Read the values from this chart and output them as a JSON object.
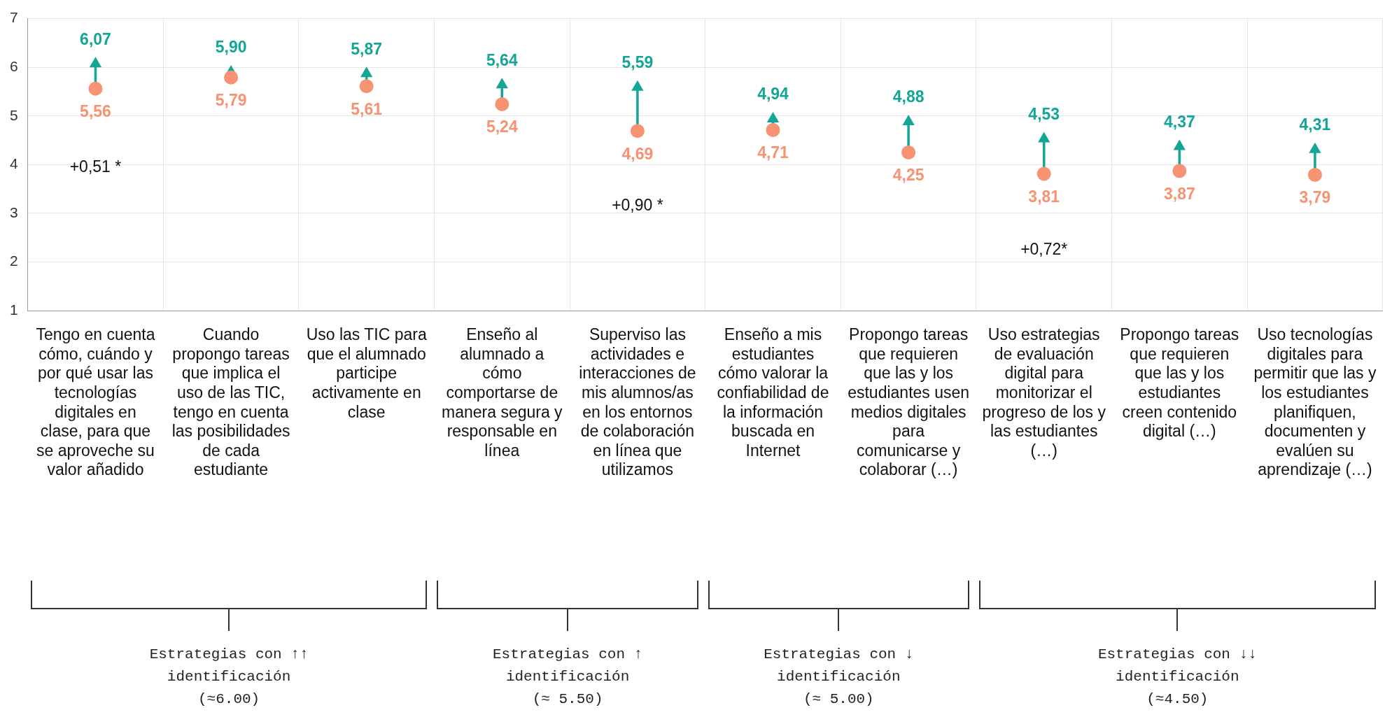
{
  "chart_data": {
    "type": "scatter",
    "categories": [
      "Tengo en cuenta cómo, cuándo y por qué usar las tecnologías digitales en clase, para que se aproveche su valor añadido",
      "Cuando propongo tareas que implica el uso de las TIC, tengo en cuenta las posibilidades de cada estudiante",
      "Uso las TIC para que el alumnado participe activamente en clase",
      "Enseño al alumnado a cómo comportarse de manera segura y responsable en línea",
      "Superviso las actividades e interacciones de mis alumnos/as en los entornos de colaboración en línea que utilizamos",
      "Enseño a mis estudiantes cómo valorar la confiabilidad de la información buscada en Internet",
      "Propongo tareas que requieren que las y los estudiantes usen medios digitales para comunicarse y colaborar (…)",
      "Uso estrategias de evaluación digital para monitorizar el progreso de los y las estudiantes (…)",
      "Propongo tareas que requieren que las y los estudiantes creen contenido digital (…)",
      "Uso tecnologías digitales para permitir que las y los estudiantes planifiquen, documenten y evalúen su aprendizaje (…)"
    ],
    "series": [
      {
        "color": "#f79272",
        "marker": "circle",
        "values": [
          5.56,
          5.79,
          5.61,
          5.24,
          4.69,
          4.71,
          4.25,
          3.81,
          3.87,
          3.79
        ],
        "value_labels": [
          "5,56",
          "5,79",
          "5,61",
          "5,24",
          "4,69",
          "4,71",
          "4,25",
          "3,81",
          "3,87",
          "3,79"
        ]
      },
      {
        "color": "#13a596",
        "marker": "triangle",
        "values": [
          6.07,
          5.9,
          5.87,
          5.64,
          5.59,
          4.94,
          4.88,
          4.53,
          4.37,
          4.31
        ],
        "value_labels": [
          "6,07",
          "5,90",
          "5,87",
          "5,64",
          "5,59",
          "4,94",
          "4,88",
          "4,53",
          "4,37",
          "4,31"
        ]
      }
    ],
    "ylim": [
      1,
      7
    ],
    "yticks": [
      1,
      2,
      3,
      4,
      5,
      6,
      7
    ],
    "grid": true,
    "legend": false,
    "annotations": [
      "+0,51 *",
      "+0,90 *",
      "+0,72*",
      "Estrategias con ↑↑\nidentificación\n(≈6.00)",
      "Estrategias con ↑\nidentificación\n(≈ 5.50)",
      "Estrategias con ↓\nidentificación\n(≈ 5.00)",
      "Estrategias con ↓↓\nidentificación\n(≈4.50)"
    ]
  }
}
